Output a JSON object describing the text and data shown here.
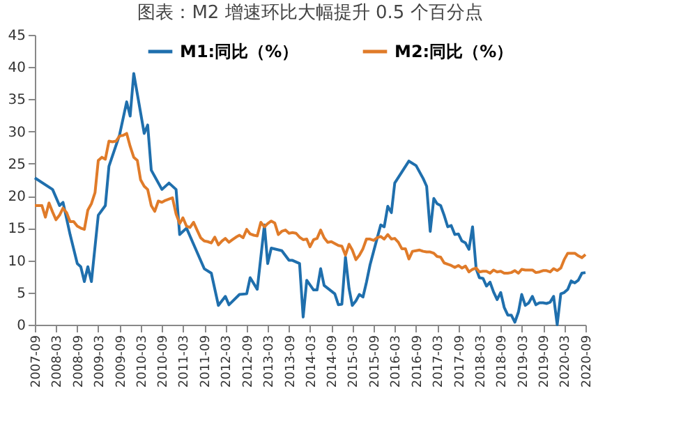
{
  "chart_data": {
    "type": "line",
    "title": "图表：M2 增速环比大幅提升 0.5 个百分点",
    "ylim": [
      0,
      45
    ],
    "yticks": [
      0,
      5,
      10,
      15,
      20,
      25,
      30,
      35,
      40,
      45
    ],
    "xlim": [
      "2007-09",
      "2020-09"
    ],
    "xticks": [
      "2007-09",
      "2008-03",
      "2008-09",
      "2009-03",
      "2009-09",
      "2010-03",
      "2010-09",
      "2011-03",
      "2011-09",
      "2012-03",
      "2012-09",
      "2013-03",
      "2013-09",
      "2014-03",
      "2014-09",
      "2015-03",
      "2015-09",
      "2016-03",
      "2016-09",
      "2017-03",
      "2017-09",
      "2018-03",
      "2018-09",
      "2019-03",
      "2019-09",
      "2020-03",
      "2020-09"
    ],
    "grid": false,
    "legend": "top",
    "marker": "none",
    "line_style": "solid",
    "series": [
      {
        "name": "M1:同比（%）",
        "color": "#1f6fad",
        "x": [
          "2007-09",
          "2008-02",
          "2008-04",
          "2008-05",
          "2008-07",
          "2008-09",
          "2008-10",
          "2008-11",
          "2008-12",
          "2009-01",
          "2009-03",
          "2009-05",
          "2009-06",
          "2009-09",
          "2009-11",
          "2009-12",
          "2010-01",
          "2010-04",
          "2010-05",
          "2010-06",
          "2010-09",
          "2010-11",
          "2011-01",
          "2011-02",
          "2011-04",
          "2011-06",
          "2011-09",
          "2011-11",
          "2012-01",
          "2012-03",
          "2012-04",
          "2012-07",
          "2012-09",
          "2012-10",
          "2012-12",
          "2013-02",
          "2013-03",
          "2013-04",
          "2013-07",
          "2013-09",
          "2013-10",
          "2013-12",
          "2014-01",
          "2014-02",
          "2014-04",
          "2014-05",
          "2014-06",
          "2014-07",
          "2014-10",
          "2014-11",
          "2014-12",
          "2015-01",
          "2015-02",
          "2015-03",
          "2015-04",
          "2015-05",
          "2015-06",
          "2015-07",
          "2015-08",
          "2015-09",
          "2015-11",
          "2015-12",
          "2016-01",
          "2016-02",
          "2016-03",
          "2016-05",
          "2016-07",
          "2016-09",
          "2016-11",
          "2016-12",
          "2017-01",
          "2017-02",
          "2017-03",
          "2017-04",
          "2017-05",
          "2017-06",
          "2017-07",
          "2017-08",
          "2017-09",
          "2017-10",
          "2017-11",
          "2017-12",
          "2018-01",
          "2018-02",
          "2018-03",
          "2018-04",
          "2018-05",
          "2018-06",
          "2018-07",
          "2018-08",
          "2018-09",
          "2018-10",
          "2018-11",
          "2018-12",
          "2019-01",
          "2019-02",
          "2019-03",
          "2019-04",
          "2019-05",
          "2019-06",
          "2019-07",
          "2019-08",
          "2019-09",
          "2019-10",
          "2019-11",
          "2019-12",
          "2020-01",
          "2020-02",
          "2020-03",
          "2020-04",
          "2020-05",
          "2020-06",
          "2020-07",
          "2020-08",
          "2020-09"
        ],
        "values": [
          22.8,
          21,
          18.5,
          19,
          14,
          9.5,
          9,
          6.7,
          9,
          6.7,
          17,
          18.5,
          24.6,
          29.5,
          34.6,
          32.4,
          39,
          29.7,
          31,
          24,
          21,
          22,
          21,
          14,
          15,
          12.5,
          8.7,
          8,
          3,
          4.4,
          3.1,
          4.7,
          4.8,
          7.3,
          5.5,
          15.5,
          9.5,
          11.9,
          11.5,
          10,
          10,
          9.5,
          1.2,
          6.9,
          5.4,
          5.4,
          8.7,
          6.1,
          4.8,
          3.1,
          3.2,
          10.5,
          5.6,
          3,
          3.7,
          4.7,
          4.3,
          6.6,
          9.3,
          11.4,
          15.5,
          15.2,
          18.4,
          17.4,
          22,
          23.7,
          25.4,
          24.7,
          22.7,
          21.5,
          14.5,
          19.6,
          18.8,
          18.5,
          17,
          15.2,
          15.4,
          14,
          14.1,
          13,
          12.7,
          11.7,
          15.2,
          8.7,
          7.3,
          7.2,
          6,
          6.6,
          5.1,
          3.9,
          5,
          2.7,
          1.5,
          1.5,
          0.4,
          2,
          4.7,
          3,
          3.4,
          4.4,
          3.1,
          3.4,
          3.4,
          3.3,
          3.5,
          4.4,
          0,
          4.8,
          5,
          5.5,
          6.8,
          6.5,
          6.9,
          8,
          8.1
        ]
      },
      {
        "name": "M2:同比（%）",
        "color": "#e07b29",
        "x": [
          "2007-09",
          "2007-10",
          "2007-11",
          "2007-12",
          "2008-01",
          "2008-02",
          "2008-03",
          "2008-04",
          "2008-05",
          "2008-06",
          "2008-07",
          "2008-08",
          "2008-09",
          "2008-10",
          "2008-11",
          "2008-12",
          "2009-01",
          "2009-02",
          "2009-03",
          "2009-04",
          "2009-05",
          "2009-06",
          "2009-07",
          "2009-08",
          "2009-09",
          "2009-10",
          "2009-11",
          "2009-12",
          "2010-01",
          "2010-02",
          "2010-03",
          "2010-04",
          "2010-05",
          "2010-06",
          "2010-07",
          "2010-08",
          "2010-09",
          "2010-10",
          "2010-11",
          "2010-12",
          "2011-01",
          "2011-02",
          "2011-03",
          "2011-04",
          "2011-05",
          "2011-06",
          "2011-07",
          "2011-08",
          "2011-09",
          "2011-10",
          "2011-11",
          "2011-12",
          "2012-01",
          "2012-02",
          "2012-03",
          "2012-04",
          "2012-05",
          "2012-06",
          "2012-07",
          "2012-08",
          "2012-09",
          "2012-10",
          "2012-11",
          "2012-12",
          "2013-01",
          "2013-02",
          "2013-03",
          "2013-04",
          "2013-05",
          "2013-06",
          "2013-07",
          "2013-08",
          "2013-09",
          "2013-10",
          "2013-11",
          "2013-12",
          "2014-01",
          "2014-02",
          "2014-03",
          "2014-04",
          "2014-05",
          "2014-06",
          "2014-07",
          "2014-08",
          "2014-09",
          "2014-10",
          "2014-11",
          "2014-12",
          "2015-01",
          "2015-02",
          "2015-03",
          "2015-04",
          "2015-05",
          "2015-06",
          "2015-07",
          "2015-08",
          "2015-09",
          "2015-10",
          "2015-11",
          "2015-12",
          "2016-01",
          "2016-02",
          "2016-03",
          "2016-04",
          "2016-05",
          "2016-06",
          "2016-07",
          "2016-08",
          "2016-09",
          "2016-10",
          "2016-11",
          "2016-12",
          "2017-01",
          "2017-02",
          "2017-03",
          "2017-04",
          "2017-05",
          "2017-06",
          "2017-07",
          "2017-08",
          "2017-09",
          "2017-10",
          "2017-11",
          "2017-12",
          "2018-01",
          "2018-02",
          "2018-03",
          "2018-04",
          "2018-05",
          "2018-06",
          "2018-07",
          "2018-08",
          "2018-09",
          "2018-10",
          "2018-11",
          "2018-12",
          "2019-01",
          "2019-02",
          "2019-03",
          "2019-04",
          "2019-05",
          "2019-06",
          "2019-07",
          "2019-08",
          "2019-09",
          "2019-10",
          "2019-11",
          "2019-12",
          "2020-01",
          "2020-02",
          "2020-03",
          "2020-04",
          "2020-05",
          "2020-06",
          "2020-07",
          "2020-08",
          "2020-09"
        ],
        "values": [
          18.5,
          18.5,
          18.5,
          16.7,
          18.9,
          17.5,
          16.3,
          17,
          18.1,
          17.4,
          16,
          16,
          15.3,
          15,
          14.8,
          17.8,
          18.8,
          20.5,
          25.5,
          26,
          25.7,
          28.5,
          28.4,
          28.5,
          29.3,
          29.4,
          29.7,
          27.7,
          26,
          25.5,
          22.5,
          21.5,
          21,
          18.5,
          17.6,
          19.2,
          19,
          19.3,
          19.5,
          19.7,
          17.2,
          15.7,
          16.6,
          15.3,
          15.1,
          15.9,
          14.7,
          13.5,
          13,
          12.9,
          12.7,
          13.6,
          12.4,
          13,
          13.4,
          12.8,
          13.2,
          13.6,
          13.9,
          13.5,
          14.8,
          14.1,
          13.9,
          13.8,
          15.9,
          15.2,
          15.7,
          16.1,
          15.8,
          14,
          14.5,
          14.7,
          14.2,
          14.3,
          14.2,
          13.6,
          13.2,
          13.3,
          12.1,
          13.2,
          13.4,
          14.7,
          13.5,
          12.8,
          12.9,
          12.6,
          12.3,
          12.2,
          10.8,
          12.5,
          11.6,
          10.1,
          10.8,
          11.8,
          13.3,
          13.3,
          13.1,
          13.5,
          13.7,
          13.3,
          14,
          13.3,
          13.4,
          12.8,
          11.8,
          11.8,
          10.2,
          11.4,
          11.5,
          11.6,
          11.4,
          11.3,
          11.3,
          11.1,
          10.6,
          10.5,
          9.6,
          9.4,
          9.2,
          8.9,
          9.2,
          8.8,
          9.1,
          8.2,
          8.6,
          8.8,
          8.2,
          8.3,
          8.3,
          8,
          8.5,
          8.2,
          8.3,
          8,
          8,
          8.1,
          8.4,
          8,
          8.6,
          8.5,
          8.5,
          8.5,
          8.1,
          8.2,
          8.4,
          8.4,
          8.2,
          8.7,
          8.4,
          8.8,
          10.1,
          11.1,
          11.1,
          11.1,
          10.7,
          10.4,
          10.9
        ]
      }
    ]
  }
}
